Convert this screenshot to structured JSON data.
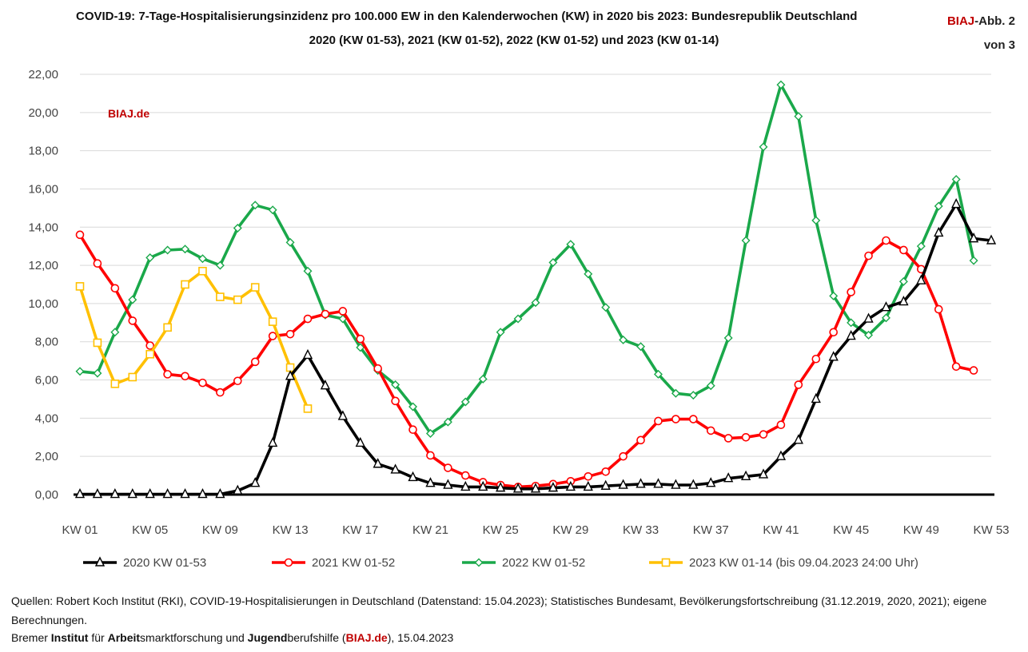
{
  "header": {
    "title_line1": "COVID-19: 7-Tage-Hospitalisierungsinzidenz pro 100.000 EW in den Kalenderwochen (KW) in 2020 bis 2023:  Bundesrepublik Deutschland",
    "title_line2": "2020 (KW 01-53), 2021 (KW 01-52), 2022 (KW 01-52) und 2023 (KW 01-14)",
    "abb_red": "BIAJ",
    "abb_rest": "-Abb. 2",
    "abb_line2": "von 3"
  },
  "watermark": "BIAJ.de",
  "colors": {
    "brand_red": "#c00000",
    "s2020": "#000000",
    "s2021": "#ff0000",
    "s2022": "#1aa84a",
    "s2023": "#ffc000",
    "grid": "#d9d9d9"
  },
  "chart_data": {
    "type": "line",
    "xlim": [
      1,
      53
    ],
    "ylim": [
      0,
      22
    ],
    "grid": true,
    "legend_position": "bottom",
    "x_ticks": [
      1,
      5,
      9,
      13,
      17,
      21,
      25,
      29,
      33,
      37,
      41,
      45,
      49,
      53
    ],
    "x_tick_labels": [
      "KW 01",
      "KW 05",
      "KW 09",
      "KW 13",
      "KW 17",
      "KW 21",
      "KW 25",
      "KW 29",
      "KW 33",
      "KW 37",
      "KW 41",
      "KW 45",
      "KW 49",
      "KW 53"
    ],
    "y_ticks": [
      0,
      2,
      4,
      6,
      8,
      10,
      12,
      14,
      16,
      18,
      20,
      22
    ],
    "y_tick_labels": [
      "0,00",
      "2,00",
      "4,00",
      "6,00",
      "8,00",
      "10,00",
      "12,00",
      "14,00",
      "16,00",
      "18,00",
      "20,00",
      "22,00"
    ],
    "series": [
      {
        "name": "2020 KW 01-53",
        "marker": "triangle",
        "color": "#000000",
        "values": [
          0.02,
          0.02,
          0.02,
          0.02,
          0.02,
          0.02,
          0.02,
          0.02,
          0.02,
          0.2,
          0.6,
          2.7,
          6.2,
          7.3,
          5.7,
          4.1,
          2.7,
          1.6,
          1.3,
          0.9,
          0.6,
          0.5,
          0.4,
          0.4,
          0.35,
          0.3,
          0.3,
          0.35,
          0.4,
          0.4,
          0.45,
          0.5,
          0.55,
          0.55,
          0.5,
          0.5,
          0.6,
          0.85,
          0.95,
          1.05,
          2.0,
          2.85,
          5.0,
          7.2,
          8.3,
          9.2,
          9.8,
          10.1,
          11.2,
          13.7,
          15.2,
          13.4,
          13.3
        ]
      },
      {
        "name": "2021 KW 01-52",
        "marker": "circle",
        "color": "#ff0000",
        "values": [
          13.6,
          12.1,
          10.8,
          9.1,
          7.8,
          6.3,
          6.2,
          5.85,
          5.35,
          5.95,
          6.95,
          8.3,
          8.4,
          9.2,
          9.45,
          9.6,
          8.15,
          6.6,
          4.9,
          3.4,
          2.05,
          1.4,
          1.0,
          0.65,
          0.5,
          0.4,
          0.45,
          0.55,
          0.7,
          0.95,
          1.2,
          2.0,
          2.85,
          3.85,
          3.95,
          3.95,
          3.35,
          2.95,
          3.0,
          3.15,
          3.65,
          5.75,
          7.1,
          8.5,
          10.6,
          12.5,
          13.3,
          12.8,
          11.8,
          9.7,
          6.7,
          6.5
        ]
      },
      {
        "name": "2022 KW 01-52",
        "marker": "diamond",
        "color": "#1aa84a",
        "values": [
          6.45,
          6.35,
          8.5,
          10.2,
          12.4,
          12.8,
          12.85,
          12.35,
          12.0,
          13.95,
          15.15,
          14.9,
          13.2,
          11.7,
          9.4,
          9.2,
          7.7,
          6.5,
          5.75,
          4.6,
          3.2,
          3.8,
          4.85,
          6.05,
          8.5,
          9.2,
          10.05,
          12.15,
          13.1,
          11.55,
          9.8,
          8.1,
          7.75,
          6.3,
          5.3,
          5.2,
          5.7,
          8.2,
          13.3,
          18.2,
          21.45,
          19.8,
          14.35,
          10.4,
          9.0,
          8.35,
          9.25,
          11.15,
          13.0,
          15.1,
          16.5,
          12.25
        ]
      },
      {
        "name": "2023 KW 01-14 (bis 09.04.2023 24:00 Uhr)",
        "marker": "square",
        "color": "#ffc000",
        "values": [
          10.9,
          7.95,
          5.8,
          6.15,
          7.35,
          8.75,
          11.0,
          11.7,
          10.35,
          10.2,
          10.85,
          9.05,
          6.65,
          4.5
        ]
      }
    ]
  },
  "footer": {
    "line1": "Quellen: Robert Koch Institut (RKI), COVID-19-Hospitalisierungen in Deutschland  (Datenstand: 15.04.2023); Statistisches Bundesamt, Bevölkerungsfortschreibung (31.12.2019, 2020, 2021); eigene Berechnungen.",
    "l2_a": "Bremer ",
    "l2_b": "Institut",
    "l2_c": " für ",
    "l2_d": "Arbeit",
    "l2_e": "smarktforschung und ",
    "l2_f": "Jugend",
    "l2_g": "berufshilfe (",
    "l2_h": "BIAJ.de",
    "l2_i": "), 15.04.2023"
  }
}
